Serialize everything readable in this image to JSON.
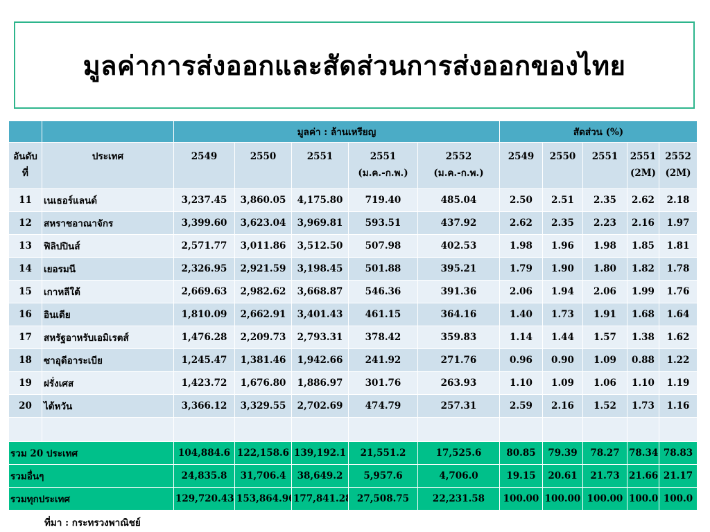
{
  "title": "มูลค่าการส่งออกและสัดส่วนการส่งออกของไทย",
  "table": {
    "group_value": "มูลค่า : ล้านเหรียญ",
    "group_share": "สัดส่วน (%)",
    "rank_header": [
      "อันดับ",
      "ที่"
    ],
    "country_header": "ประเทศ",
    "value_columns": [
      {
        "year": "2549",
        "sub": ""
      },
      {
        "year": "2550",
        "sub": ""
      },
      {
        "year": "2551",
        "sub": ""
      },
      {
        "year": "2551",
        "sub": "(ม.ค.-ก.พ.)"
      },
      {
        "year": "2552",
        "sub": "(ม.ค.-ก.พ.)"
      }
    ],
    "share_columns": [
      {
        "year": "2549",
        "sub": ""
      },
      {
        "year": "2550",
        "sub": ""
      },
      {
        "year": "2551",
        "sub": ""
      },
      {
        "year": "2551",
        "sub": "(2M)"
      },
      {
        "year": "2552",
        "sub": "(2M)"
      }
    ],
    "rows": [
      {
        "rank": "11",
        "country": "เนเธอร์แลนด์",
        "values": [
          "3,237.45",
          "3,860.05",
          "4,175.80",
          "719.40",
          "485.04"
        ],
        "shares": [
          "2.50",
          "2.51",
          "2.35",
          "2.62",
          "2.18"
        ]
      },
      {
        "rank": "12",
        "country": "สหราชอาณาจักร",
        "values": [
          "3,399.60",
          "3,623.04",
          "3,969.81",
          "593.51",
          "437.92"
        ],
        "shares": [
          "2.62",
          "2.35",
          "2.23",
          "2.16",
          "1.97"
        ]
      },
      {
        "rank": "13",
        "country": "ฟิลิปปินส์",
        "values": [
          "2,571.77",
          "3,011.86",
          "3,512.50",
          "507.98",
          "402.53"
        ],
        "shares": [
          "1.98",
          "1.96",
          "1.98",
          "1.85",
          "1.81"
        ]
      },
      {
        "rank": "14",
        "country": "เยอรมนี",
        "values": [
          "2,326.95",
          "2,921.59",
          "3,198.45",
          "501.88",
          "395.21"
        ],
        "shares": [
          "1.79",
          "1.90",
          "1.80",
          "1.82",
          "1.78"
        ]
      },
      {
        "rank": "15",
        "country": "เกาหลีใต้",
        "values": [
          "2,669.63",
          "2,982.62",
          "3,668.87",
          "546.36",
          "391.36"
        ],
        "shares": [
          "2.06",
          "1.94",
          "2.06",
          "1.99",
          "1.76"
        ]
      },
      {
        "rank": "16",
        "country": "อินเดีย",
        "values": [
          "1,810.09",
          "2,662.91",
          "3,401.43",
          "461.15",
          "364.16"
        ],
        "shares": [
          "1.40",
          "1.73",
          "1.91",
          "1.68",
          "1.64"
        ]
      },
      {
        "rank": "17",
        "country": "สหรัฐอาหรับเอมิเรตส์",
        "values": [
          "1,476.28",
          "2,209.73",
          "2,793.31",
          "378.42",
          "359.83"
        ],
        "shares": [
          "1.14",
          "1.44",
          "1.57",
          "1.38",
          "1.62"
        ]
      },
      {
        "rank": "18",
        "country": "ซาอุดีอาระเบีย",
        "values": [
          "1,245.47",
          "1,381.46",
          "1,942.66",
          "241.92",
          "271.76"
        ],
        "shares": [
          "0.96",
          "0.90",
          "1.09",
          "0.88",
          "1.22"
        ]
      },
      {
        "rank": "19",
        "country": "ฝรั่งเศส",
        "values": [
          "1,423.72",
          "1,676.80",
          "1,886.97",
          "301.76",
          "263.93"
        ],
        "shares": [
          "1.10",
          "1.09",
          "1.06",
          "1.10",
          "1.19"
        ]
      },
      {
        "rank": "20",
        "country": "ไต้หวัน",
        "values": [
          "3,366.12",
          "3,329.55",
          "2,702.69",
          "474.79",
          "257.31"
        ],
        "shares": [
          "2.59",
          "2.16",
          "1.52",
          "1.73",
          "1.16"
        ]
      }
    ],
    "totals": [
      {
        "label": "รวม 20 ประเทศ",
        "values": [
          "104,884.6",
          "122,158.6",
          "139,192.1",
          "21,551.2",
          "17,525.6"
        ],
        "shares": [
          "80.85",
          "79.39",
          "78.27",
          "78.34",
          "78.83"
        ]
      },
      {
        "label": "รวมอื่นๆ",
        "values": [
          "24,835.8",
          "31,706.4",
          "38,649.2",
          "5,957.6",
          "4,706.0"
        ],
        "shares": [
          "19.15",
          "20.61",
          "21.73",
          "21.66",
          "21.17"
        ]
      },
      {
        "label": "รวมทุกประเทศ",
        "values": [
          "129,720.43",
          "153,864.96",
          "177,841.28",
          "27,508.75",
          "22,231.58"
        ],
        "shares": [
          "100.00",
          "100.00",
          "100.00",
          "100.0",
          "100.0"
        ]
      }
    ]
  },
  "source": "ที่มา : กระทรวงพาณิชย์",
  "colors": {
    "title_border": "#2db58c",
    "header_band": "#4bacc6",
    "row_dark": "#cfe0ec",
    "row_light": "#e8f0f7",
    "totals_band": "#00c08a"
  }
}
